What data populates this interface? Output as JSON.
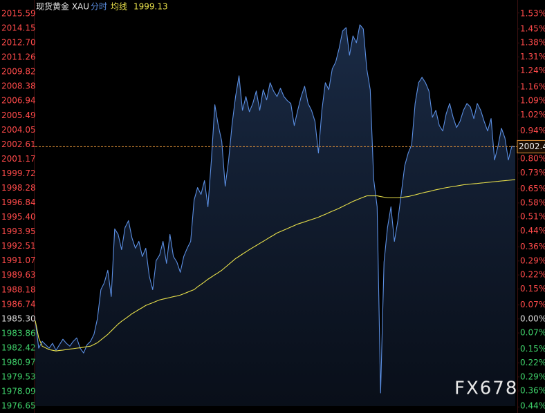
{
  "chart_data": {
    "type": "line",
    "title": "现货黄金 XAU",
    "watermark": "FX678",
    "last_price": 2002.4,
    "series": [
      {
        "name": "分时",
        "color": "#5b8fe3",
        "values": [
          1985.13,
          1982.4,
          1983.08,
          1982.74,
          1982.4,
          1982.88,
          1982.19,
          1982.74,
          1983.29,
          1982.88,
          1982.6,
          1983.08,
          1983.42,
          1982.4,
          1981.92,
          1982.74,
          1983.08,
          1983.77,
          1985.34,
          1988.21,
          1988.9,
          1990.13,
          1987.53,
          1994.24,
          1993.69,
          1992.18,
          1994.37,
          1995.06,
          1993.35,
          1992.32,
          1993.0,
          1991.5,
          1992.32,
          1989.58,
          1988.21,
          1991.09,
          1991.64,
          1993.0,
          1990.82,
          1993.69,
          1991.5,
          1990.95,
          1989.93,
          1991.5,
          1992.32,
          1993.0,
          1997.11,
          1998.34,
          1997.66,
          1999.03,
          1996.43,
          2001.08,
          2006.56,
          2004.5,
          2002.93,
          1998.48,
          2001.08,
          2004.64,
          2007.38,
          2009.43,
          2006.01,
          2007.38,
          2005.87,
          2006.69,
          2007.93,
          2006.01,
          2008.06,
          2007.04,
          2008.75,
          2007.93,
          2007.38,
          2008.2,
          2007.38,
          2006.97,
          2006.69,
          2004.5,
          2006.01,
          2007.38,
          2008.4,
          2006.69,
          2006.01,
          2004.91,
          2001.77,
          2006.01,
          2008.75,
          2008.06,
          2010.12,
          2010.8,
          2012.17,
          2013.88,
          2014.22,
          2011.48,
          2013.4,
          2012.72,
          2014.5,
          2014.08,
          2010.12,
          2008.06,
          1999.16,
          1996.43,
          1977.95,
          1990.95,
          1994.37,
          1996.43,
          1993.0,
          1995.06,
          1997.8,
          2000.53,
          2001.77,
          2002.59,
          2006.69,
          2008.75,
          2009.29,
          2008.75,
          2007.93,
          2005.32,
          2006.01,
          2004.5,
          2003.96,
          2005.67,
          2006.69,
          2005.32,
          2004.3,
          2004.91,
          2006.01,
          2006.69,
          2006.35,
          2005.19,
          2006.69,
          2006.01,
          2004.91,
          2003.96,
          2005.19,
          2001.08,
          2002.45,
          2004.23,
          2003.27,
          2001.08,
          2002.45,
          2002.4
        ]
      },
      {
        "name": "均线",
        "color": "#e8e04a",
        "values": [
          1985.13,
          1983.42,
          1982.6,
          1982.43,
          1982.26,
          1982.19,
          1982.12,
          1982.17,
          1982.21,
          1982.26,
          1982.31,
          1982.35,
          1982.4,
          1982.44,
          1982.5,
          1982.55,
          1982.6,
          1982.77,
          1982.94,
          1983.22,
          1983.49,
          1983.77,
          1984.11,
          1984.45,
          1984.79,
          1985.07,
          1985.31,
          1985.56,
          1985.82,
          1986.02,
          1986.23,
          1986.43,
          1986.64,
          1986.78,
          1986.91,
          1987.05,
          1987.19,
          1987.27,
          1987.35,
          1987.43,
          1987.51,
          1987.58,
          1987.67,
          1987.8,
          1987.94,
          1988.08,
          1988.21,
          1988.49,
          1988.73,
          1988.98,
          1989.24,
          1989.46,
          1989.69,
          1989.9,
          1990.13,
          1990.42,
          1990.71,
          1991.0,
          1991.29,
          1991.51,
          1991.74,
          1991.96,
          1992.18,
          1992.39,
          1992.59,
          1992.8,
          1993.0,
          1993.21,
          1993.42,
          1993.62,
          1993.83,
          1993.98,
          1994.12,
          1994.27,
          1994.42,
          1994.57,
          1994.72,
          1994.83,
          1994.94,
          1995.06,
          1995.17,
          1995.28,
          1995.4,
          1995.55,
          1995.69,
          1995.85,
          1996.0,
          1996.14,
          1996.29,
          1996.46,
          1996.63,
          1996.8,
          1996.97,
          1997.11,
          1997.25,
          1997.39,
          1997.52,
          1997.52,
          1997.52,
          1997.52,
          1997.45,
          1997.39,
          1997.32,
          1997.32,
          1997.32,
          1997.32,
          1997.36,
          1997.41,
          1997.45,
          1997.54,
          1997.62,
          1997.71,
          1997.8,
          1997.88,
          1997.95,
          1998.04,
          1998.12,
          1998.19,
          1998.27,
          1998.33,
          1998.39,
          1998.45,
          1998.5,
          1998.56,
          1998.62,
          1998.65,
          1998.69,
          1998.72,
          1998.75,
          1998.79,
          1998.82,
          1998.86,
          1998.89,
          1998.93,
          1998.96,
          1999.0,
          1999.03,
          1999.06,
          1999.1,
          1999.13
        ]
      }
    ],
    "ylim": [
      1976.65,
      2015.59
    ],
    "yticks": [
      2015.59,
      2014.15,
      {
        "value": 2012.7,
        "label": "2012.70"
      },
      2011.26,
      2009.82,
      2008.38,
      2006.94,
      2005.49,
      2004.05,
      2002.61,
      2001.17,
      1999.72,
      1998.28,
      1996.84,
      {
        "value": 1995.4,
        "label": "1995.40"
      },
      1993.95,
      1992.51,
      1991.07,
      1989.63,
      1988.18,
      1986.74,
      {
        "value": 1985.3,
        "label": "1985.30"
      },
      1983.86,
      1982.42,
      1980.97,
      1979.53,
      1978.09,
      1976.65
    ],
    "y2lim": [
      -0.4357,
      1.5257
    ],
    "y2ticks": [
      {
        "value": 1.53,
        "label": "1.53%"
      },
      {
        "value": 1.45,
        "label": "1.45%"
      },
      {
        "value": 1.38,
        "label": "1.38%"
      },
      {
        "value": 1.31,
        "label": "1.31%"
      },
      {
        "value": 1.24,
        "label": "1.24%"
      },
      {
        "value": 1.16,
        "label": "1.16%"
      },
      {
        "value": 1.09,
        "label": "1.09%"
      },
      {
        "value": 1.02,
        "label": "1.02%"
      },
      {
        "value": 0.94,
        "label": "0.94%"
      },
      {
        "value": 0.87,
        "label": "0.87%"
      },
      {
        "value": 0.8,
        "label": "0.80%"
      },
      {
        "value": 0.73,
        "label": "0.73%"
      },
      {
        "value": 0.65,
        "label": "0.65%"
      },
      {
        "value": 0.58,
        "label": "0.58%"
      },
      {
        "value": 0.51,
        "label": "0.51%"
      },
      {
        "value": 0.44,
        "label": "0.44%"
      },
      {
        "value": 0.36,
        "label": "0.36%"
      },
      {
        "value": 0.29,
        "label": "0.29%"
      },
      {
        "value": 0.22,
        "label": "0.22%"
      },
      {
        "value": 0.15,
        "label": "0.15%"
      },
      {
        "value": 0.07,
        "label": "0.07%"
      },
      {
        "value": 0.0,
        "label": "0.00%"
      },
      {
        "value": -0.07,
        "label": "0.07%"
      },
      {
        "value": -0.15,
        "label": "0.15%"
      },
      {
        "value": -0.22,
        "label": "0.22%"
      },
      {
        "value": -0.29,
        "label": "0.29%"
      },
      {
        "value": -0.36,
        "label": "0.36%"
      },
      {
        "value": -0.44,
        "label": "0.44%"
      }
    ],
    "grid": false,
    "up_color": "#ff4a4a",
    "down_color": "#3fd16a",
    "flat_color": "#dddddd",
    "last_price_color": "#e8963a"
  }
}
